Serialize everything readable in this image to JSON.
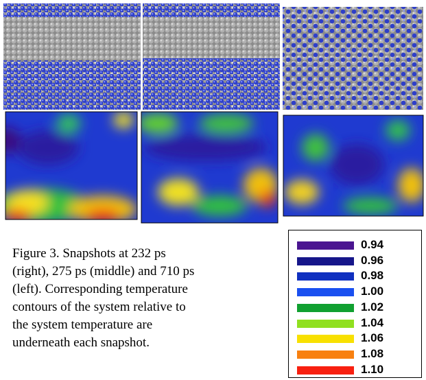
{
  "caption": {
    "lines": [
      "Figure 3.  Snapshots at 232 ps",
      "(right), 275 ps (middle) and 710 ps",
      "(left).  Corresponding temperature",
      "contours of the system relative to",
      "the system temperature are",
      "underneath each snapshot."
    ]
  },
  "legend": {
    "items": [
      {
        "label": "0.94",
        "color": "#4a1590"
      },
      {
        "label": "0.96",
        "color": "#16168a"
      },
      {
        "label": "0.98",
        "color": "#1030c0"
      },
      {
        "label": "1.00",
        "color": "#1a50f0"
      },
      {
        "label": "1.02",
        "color": "#10a030"
      },
      {
        "label": "1.04",
        "color": "#90e020"
      },
      {
        "label": "1.06",
        "color": "#f8e000"
      },
      {
        "label": "1.08",
        "color": "#f88010"
      },
      {
        "label": "1.10",
        "color": "#f82010"
      }
    ]
  }
}
